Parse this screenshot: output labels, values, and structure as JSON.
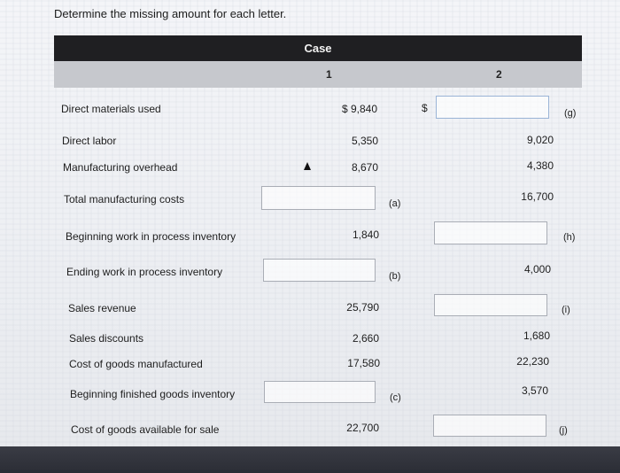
{
  "prompt": "Determine the missing amount for each letter.",
  "header": {
    "case_label": "Case",
    "col1": "1",
    "col2": "2"
  },
  "dollar_sign": "$",
  "rows": [
    {
      "label": "Direct materials used",
      "c1": "$ 9,840",
      "c2": "",
      "letter": "(g)"
    },
    {
      "label": "Direct labor",
      "c1": "5,350",
      "c2": "9,020"
    },
    {
      "label": "Manufacturing overhead",
      "c1": "8,670",
      "c2": "4,380"
    },
    {
      "label": "Total manufacturing costs",
      "c1": "",
      "c1_letter": "(a)",
      "c2": "16,700"
    },
    {
      "label": "Beginning work in process inventory",
      "c1": "1,840",
      "c2": "",
      "letter": "(h)"
    },
    {
      "label": "Ending work in process inventory",
      "c1": "",
      "c1_letter": "(b)",
      "c2": "4,000"
    },
    {
      "label": "Sales revenue",
      "c1": "25,790",
      "c2": "",
      "letter": "(i)"
    },
    {
      "label": "Sales discounts",
      "c1": "2,660",
      "c2": "1,680"
    },
    {
      "label": "Cost of goods manufactured",
      "c1": "17,580",
      "c2": "22,230"
    },
    {
      "label": "Beginning finished goods inventory",
      "c1": "",
      "c1_letter": "(c)",
      "c2": "3,570"
    },
    {
      "label": "Cost of goods available for sale",
      "c1": "22,700",
      "c2": "",
      "letter": "(j)"
    }
  ]
}
